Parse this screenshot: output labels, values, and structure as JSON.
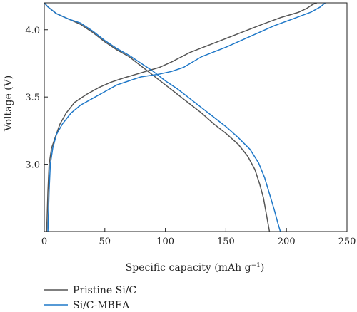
{
  "chart_data": {
    "type": "line",
    "title": "",
    "xlabel": "Specific capacity (mAh g",
    "xlabel_sup": "−1",
    "xlabel_close": ")",
    "ylabel": "Voltage (V)",
    "xlim": [
      0,
      250
    ],
    "ylim": [
      2.5,
      4.2
    ],
    "xticks": [
      0,
      50,
      100,
      150,
      200,
      250
    ],
    "yticks": [
      3.0,
      3.5,
      4.0
    ],
    "xtick_labels": [
      "0",
      "50",
      "100",
      "150",
      "200",
      "250"
    ],
    "ytick_labels": [
      "3.0",
      "3.5",
      "4.0"
    ],
    "grid": false,
    "legend_position": "bottom-left, below plot",
    "series": [
      {
        "name": "Pristine Si/C",
        "color": "#555555",
        "charge": [
          [
            2,
            2.5
          ],
          [
            3,
            2.8
          ],
          [
            4,
            3.0
          ],
          [
            6,
            3.12
          ],
          [
            9,
            3.2
          ],
          [
            13,
            3.3
          ],
          [
            18,
            3.38
          ],
          [
            25,
            3.46
          ],
          [
            35,
            3.52
          ],
          [
            45,
            3.57
          ],
          [
            55,
            3.61
          ],
          [
            65,
            3.64
          ],
          [
            80,
            3.68
          ],
          [
            95,
            3.72
          ],
          [
            105,
            3.76
          ],
          [
            120,
            3.83
          ],
          [
            140,
            3.9
          ],
          [
            160,
            3.97
          ],
          [
            180,
            4.04
          ],
          [
            195,
            4.09
          ],
          [
            210,
            4.13
          ],
          [
            217,
            4.16
          ],
          [
            222,
            4.19
          ],
          [
            225,
            4.2
          ]
        ],
        "discharge": [
          [
            0,
            4.2
          ],
          [
            3,
            4.17
          ],
          [
            10,
            4.12
          ],
          [
            20,
            4.08
          ],
          [
            30,
            4.04
          ],
          [
            40,
            3.98
          ],
          [
            50,
            3.91
          ],
          [
            60,
            3.85
          ],
          [
            70,
            3.8
          ],
          [
            80,
            3.73
          ],
          [
            90,
            3.66
          ],
          [
            100,
            3.59
          ],
          [
            110,
            3.52
          ],
          [
            120,
            3.45
          ],
          [
            130,
            3.38
          ],
          [
            140,
            3.3
          ],
          [
            150,
            3.23
          ],
          [
            160,
            3.15
          ],
          [
            168,
            3.06
          ],
          [
            174,
            2.96
          ],
          [
            178,
            2.85
          ],
          [
            181,
            2.75
          ],
          [
            183,
            2.65
          ],
          [
            185,
            2.55
          ],
          [
            186,
            2.5
          ]
        ]
      },
      {
        "name": "Si/C-MBEA",
        "color": "#1f78c8",
        "charge": [
          [
            3,
            2.5
          ],
          [
            4,
            2.8
          ],
          [
            5,
            3.0
          ],
          [
            7,
            3.12
          ],
          [
            10,
            3.22
          ],
          [
            15,
            3.3
          ],
          [
            22,
            3.38
          ],
          [
            30,
            3.44
          ],
          [
            40,
            3.49
          ],
          [
            50,
            3.54
          ],
          [
            60,
            3.59
          ],
          [
            70,
            3.62
          ],
          [
            80,
            3.65
          ],
          [
            95,
            3.67
          ],
          [
            105,
            3.69
          ],
          [
            115,
            3.72
          ],
          [
            130,
            3.8
          ],
          [
            150,
            3.87
          ],
          [
            170,
            3.95
          ],
          [
            190,
            4.03
          ],
          [
            205,
            4.08
          ],
          [
            220,
            4.13
          ],
          [
            228,
            4.17
          ],
          [
            232,
            4.2
          ]
        ],
        "discharge": [
          [
            0,
            4.2
          ],
          [
            3,
            4.17
          ],
          [
            10,
            4.12
          ],
          [
            20,
            4.08
          ],
          [
            30,
            4.05
          ],
          [
            40,
            3.99
          ],
          [
            50,
            3.92
          ],
          [
            60,
            3.86
          ],
          [
            70,
            3.81
          ],
          [
            80,
            3.75
          ],
          [
            90,
            3.69
          ],
          [
            100,
            3.62
          ],
          [
            110,
            3.56
          ],
          [
            120,
            3.49
          ],
          [
            130,
            3.42
          ],
          [
            140,
            3.35
          ],
          [
            150,
            3.28
          ],
          [
            160,
            3.2
          ],
          [
            170,
            3.11
          ],
          [
            177,
            3.01
          ],
          [
            182,
            2.9
          ],
          [
            186,
            2.78
          ],
          [
            190,
            2.66
          ],
          [
            193,
            2.56
          ],
          [
            195,
            2.5
          ]
        ]
      }
    ]
  }
}
